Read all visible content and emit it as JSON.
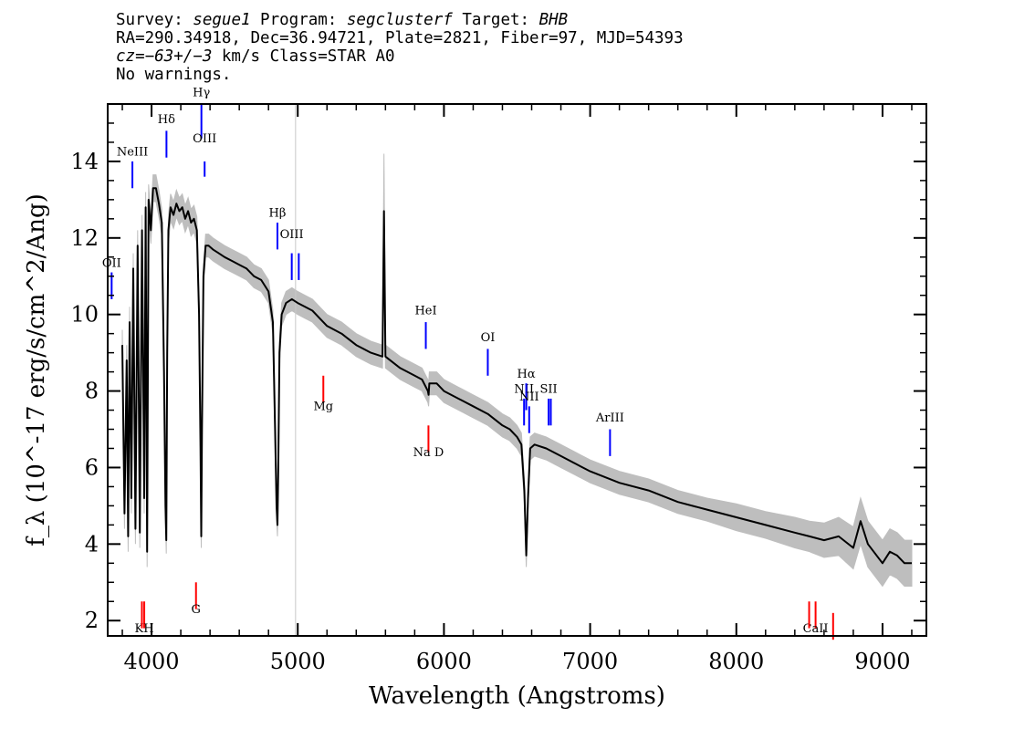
{
  "header": {
    "line1": {
      "survey_label": "Survey: ",
      "survey": "segue1",
      "program_label": " Program: ",
      "program": "segclusterf",
      "target_label": " Target: ",
      "target": "BHB"
    },
    "line2": "RA=290.34918, Dec=36.94721, Plate=2821, Fiber=97, MJD=54393",
    "line3": {
      "cz": "cz=−63+/−3",
      "rest": " km/s Class=STAR A0"
    },
    "line4": "No warnings."
  },
  "colors": {
    "spectrum": "#000000",
    "error_band": "#bebebe",
    "emission_line": "#0000ff",
    "absorption_line": "#ff0000",
    "marker_line": "#c8c8c8"
  },
  "chart_data": {
    "type": "line",
    "xlabel": "Wavelength (Angstroms)",
    "ylabel": "f_λ (10^-17 erg/s/cm^2/Ang)",
    "xlim": [
      3700,
      9300
    ],
    "ylim": [
      1.6,
      15.5
    ],
    "xticks": [
      4000,
      5000,
      6000,
      7000,
      8000,
      9000
    ],
    "yticks": [
      2,
      4,
      6,
      8,
      10,
      12,
      14
    ],
    "grid": false,
    "reference_line_x": 4985,
    "series": [
      {
        "x": [
          3800,
          3815,
          3830,
          3840,
          3850,
          3862,
          3875,
          3890,
          3905,
          3920,
          3935,
          3950,
          3960,
          3970,
          3980,
          3995,
          4010,
          4030,
          4050,
          4070,
          4085,
          4095,
          4101,
          4107,
          4115,
          4130,
          4150,
          4170,
          4190,
          4210,
          4230,
          4250,
          4270,
          4290,
          4310,
          4325,
          4335,
          4340,
          4345,
          4355,
          4370,
          4390,
          4420,
          4460,
          4500,
          4550,
          4600,
          4650,
          4700,
          4750,
          4800,
          4830,
          4845,
          4855,
          4861,
          4867,
          4875,
          4890,
          4920,
          4960,
          5000,
          5050,
          5100,
          5150,
          5200,
          5300,
          5400,
          5500,
          5580,
          5590,
          5600,
          5700,
          5800,
          5850,
          5890,
          5895,
          5900,
          5950,
          6000,
          6100,
          6200,
          6300,
          6400,
          6450,
          6500,
          6530,
          6550,
          6563,
          6575,
          6590,
          6620,
          6700,
          6800,
          6900,
          7000,
          7200,
          7400,
          7600,
          7800,
          8000,
          8200,
          8400,
          8500,
          8600,
          8700,
          8800,
          8850,
          8900,
          9000,
          9050,
          9100,
          9150,
          9200
        ],
        "y": [
          9.2,
          4.8,
          8.8,
          4.2,
          9.8,
          5.2,
          11.2,
          4.4,
          11.8,
          4.3,
          12.2,
          5.2,
          12.8,
          3.8,
          13.0,
          12.2,
          13.3,
          13.3,
          12.9,
          12.4,
          8.5,
          5.0,
          4.1,
          9.0,
          12.2,
          12.8,
          12.6,
          12.9,
          12.7,
          12.8,
          12.5,
          12.7,
          12.4,
          12.5,
          12.2,
          10.0,
          6.5,
          4.2,
          7.0,
          11.0,
          11.8,
          11.8,
          11.7,
          11.6,
          11.5,
          11.4,
          11.3,
          11.2,
          11.0,
          10.9,
          10.6,
          9.8,
          7.0,
          5.0,
          4.5,
          6.0,
          9.0,
          10.0,
          10.3,
          10.4,
          10.3,
          10.2,
          10.1,
          9.9,
          9.7,
          9.5,
          9.2,
          9.0,
          8.9,
          12.7,
          8.9,
          8.6,
          8.4,
          8.3,
          8.0,
          7.9,
          8.2,
          8.2,
          8.0,
          7.8,
          7.6,
          7.4,
          7.1,
          7.0,
          6.8,
          6.6,
          5.4,
          3.7,
          5.2,
          6.5,
          6.6,
          6.5,
          6.3,
          6.1,
          5.9,
          5.6,
          5.4,
          5.1,
          4.9,
          4.7,
          4.5,
          4.3,
          4.2,
          4.1,
          4.2,
          3.9,
          4.6,
          4.0,
          3.5,
          3.8,
          3.7,
          3.5,
          3.5
        ],
        "error_halfwidth": [
          0.4,
          0.4,
          0.4,
          0.4,
          0.4,
          0.4,
          0.4,
          0.4,
          0.4,
          0.4,
          0.4,
          0.4,
          0.4,
          0.4,
          0.4,
          0.35,
          0.35,
          0.35,
          0.35,
          0.35,
          0.35,
          0.35,
          0.35,
          0.35,
          0.35,
          0.35,
          0.35,
          0.35,
          0.35,
          0.35,
          0.35,
          0.35,
          0.35,
          0.35,
          0.35,
          0.3,
          0.3,
          0.3,
          0.3,
          0.3,
          0.3,
          0.3,
          0.3,
          0.3,
          0.3,
          0.3,
          0.3,
          0.3,
          0.3,
          0.3,
          0.3,
          0.3,
          0.3,
          0.3,
          0.3,
          0.3,
          0.3,
          0.3,
          0.3,
          0.3,
          0.3,
          0.3,
          0.3,
          0.3,
          0.3,
          0.3,
          0.3,
          0.3,
          0.3,
          1.5,
          0.3,
          0.3,
          0.3,
          0.3,
          0.3,
          0.3,
          0.3,
          0.3,
          0.3,
          0.3,
          0.3,
          0.3,
          0.3,
          0.3,
          0.3,
          0.3,
          0.3,
          0.3,
          0.3,
          0.3,
          0.3,
          0.3,
          0.3,
          0.3,
          0.3,
          0.3,
          0.3,
          0.3,
          0.3,
          0.35,
          0.35,
          0.4,
          0.4,
          0.45,
          0.5,
          0.55,
          0.6,
          0.6,
          0.6,
          0.6,
          0.6,
          0.6,
          0.6
        ]
      }
    ],
    "annotations": [
      {
        "label": "NeIII",
        "x": 3869,
        "y_top": 14.0,
        "y_bottom": 13.3,
        "label_y": 14.15,
        "kind": "emission"
      },
      {
        "label": "Hδ",
        "x": 4102,
        "y_top": 14.8,
        "y_bottom": 14.1,
        "label_y": 15.0,
        "kind": "emission"
      },
      {
        "label": "Hγ",
        "x": 4341,
        "y_top": 15.5,
        "y_bottom": 14.6,
        "label_y": 15.7,
        "kind": "emission"
      },
      {
        "label": "OIII",
        "x": 4363,
        "y_top": 14.0,
        "y_bottom": 13.6,
        "label_y": 14.5,
        "kind": "emission"
      },
      {
        "label": "OII",
        "x": 3727,
        "y_top": 11.1,
        "y_bottom": 10.4,
        "label_y": 11.25,
        "kind": "emission"
      },
      {
        "label": "Hβ",
        "x": 4861,
        "y_top": 12.4,
        "y_bottom": 11.7,
        "label_y": 12.55,
        "kind": "emission"
      },
      {
        "label": "OIII",
        "x": 4959,
        "y_top": 11.6,
        "y_bottom": 10.9,
        "label_y": 12.0,
        "kind": "emission"
      },
      {
        "label": "",
        "x": 5007,
        "y_top": 11.6,
        "y_bottom": 10.9,
        "label_y": 0,
        "kind": "emission"
      },
      {
        "label": "HeI",
        "x": 5876,
        "y_top": 9.8,
        "y_bottom": 9.1,
        "label_y": 10.0,
        "kind": "emission"
      },
      {
        "label": "OI",
        "x": 6300,
        "y_top": 9.1,
        "y_bottom": 8.4,
        "label_y": 9.3,
        "kind": "emission"
      },
      {
        "label": "NII",
        "x": 6548,
        "y_top": 7.8,
        "y_bottom": 7.1,
        "label_y": 7.95,
        "kind": "emission"
      },
      {
        "label": "Hα",
        "x": 6563,
        "y_top": 8.2,
        "y_bottom": 7.5,
        "label_y": 8.35,
        "kind": "emission"
      },
      {
        "label": "NII",
        "x": 6583,
        "y_top": 7.6,
        "y_bottom": 6.9,
        "label_y": 7.75,
        "kind": "emission"
      },
      {
        "label": "SII",
        "x": 6716,
        "y_top": 7.8,
        "y_bottom": 7.1,
        "label_y": 7.95,
        "kind": "emission"
      },
      {
        "label": "",
        "x": 6731,
        "y_top": 7.8,
        "y_bottom": 7.1,
        "label_y": 0,
        "kind": "emission"
      },
      {
        "label": "ArIII",
        "x": 7136,
        "y_top": 7.0,
        "y_bottom": 6.3,
        "label_y": 7.2,
        "kind": "emission"
      },
      {
        "label": "Mg",
        "x": 5175,
        "y_top": 8.4,
        "y_bottom": 7.7,
        "label_y": 7.5,
        "kind": "absorption"
      },
      {
        "label": "Na D",
        "x": 5894,
        "y_top": 7.1,
        "y_bottom": 6.4,
        "label_y": 6.3,
        "kind": "absorption"
      },
      {
        "label": "G",
        "x": 4304,
        "y_top": 3.0,
        "y_bottom": 2.3,
        "label_y": 2.2,
        "kind": "absorption"
      },
      {
        "label": "KH",
        "x": 3950,
        "y_top": 2.5,
        "y_bottom": 1.8,
        "label_y": 1.7,
        "kind": "absorption"
      },
      {
        "label": "",
        "x": 3934,
        "y_top": 2.5,
        "y_bottom": 1.8,
        "label_y": 0,
        "kind": "absorption"
      },
      {
        "label": "CaII",
        "x": 8542,
        "y_top": 2.5,
        "y_bottom": 1.8,
        "label_y": 1.7,
        "kind": "absorption"
      },
      {
        "label": "",
        "x": 8498,
        "y_top": 2.5,
        "y_bottom": 1.8,
        "label_y": 0,
        "kind": "absorption"
      },
      {
        "label": "",
        "x": 8662,
        "y_top": 2.2,
        "y_bottom": 1.5,
        "label_y": 0,
        "kind": "absorption"
      }
    ]
  }
}
